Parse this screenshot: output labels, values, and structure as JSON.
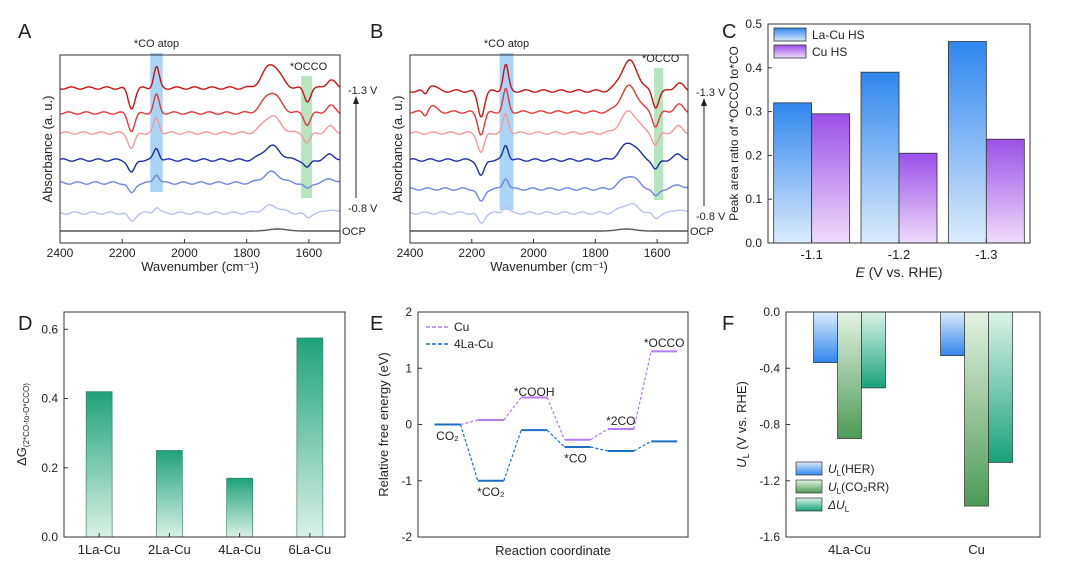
{
  "chart_data": [
    {
      "panel": "A",
      "type": "line",
      "xlabel": "Wavenumber (cm⁻¹)",
      "ylabel": "Absorbance (a. u.)",
      "xlim": [
        2400,
        1500
      ],
      "xticks": [
        2400,
        2200,
        2000,
        1800,
        1600
      ],
      "bands": [
        {
          "label": "*CO atop",
          "x": [
            2110,
            2070
          ],
          "color": "#8ec5f2"
        },
        {
          "label": "*OCCO",
          "x": [
            1625,
            1590
          ],
          "color": "#9edcaa"
        }
      ],
      "series": [
        {
          "name": "OCP",
          "color": "#555555",
          "offset": 0
        },
        {
          "name": "-0.8 V",
          "color": "#b6c2ee",
          "offset": 0.6
        },
        {
          "name": "",
          "color": "#6d86e0",
          "offset": 1.4
        },
        {
          "name": "",
          "color": "#1e2fa0",
          "offset": 2.2
        },
        {
          "name": "",
          "color": "#f39a9a",
          "offset": 3.0
        },
        {
          "name": "",
          "color": "#e03b3b",
          "offset": 3.8
        },
        {
          "name": "-1.3 V",
          "color": "#c81414",
          "offset": 4.6
        }
      ],
      "annotations": {
        "top": "-1.3 V",
        "bottom": "-0.8 V",
        "ocp": "OCP"
      }
    },
    {
      "panel": "B",
      "type": "line",
      "xlabel": "Wavenumber (cm⁻¹)",
      "ylabel": "Absorbance (a. u.)",
      "xlim": [
        2400,
        1500
      ],
      "xticks": [
        2400,
        2200,
        2000,
        1800,
        1600
      ],
      "bands": [
        {
          "label": "*CO atop",
          "x": [
            2110,
            2065
          ],
          "color": "#8ec5f2"
        },
        {
          "label": "*OCCO",
          "x": [
            1610,
            1580
          ],
          "color": "#9edcaa"
        }
      ],
      "series": [
        {
          "name": "OCP",
          "color": "#555555",
          "offset": 0
        },
        {
          "name": "-0.8 V",
          "color": "#b6c2ee",
          "offset": 0.6
        },
        {
          "name": "",
          "color": "#6d86e0",
          "offset": 1.4
        },
        {
          "name": "",
          "color": "#1e2fa0",
          "offset": 2.2
        },
        {
          "name": "",
          "color": "#f39a9a",
          "offset": 3.0
        },
        {
          "name": "",
          "color": "#e03b3b",
          "offset": 3.8
        },
        {
          "name": "-1.3 V",
          "color": "#c81414",
          "offset": 4.6
        }
      ],
      "annotations": {
        "top": "-1.3 V",
        "bottom": "-0.8 V",
        "ocp": "OCP"
      }
    },
    {
      "panel": "C",
      "type": "bar",
      "categories": [
        "-1.1",
        "-1.2",
        "-1.3"
      ],
      "series": [
        {
          "name": "La-Cu HS",
          "values": [
            0.32,
            0.39,
            0.46
          ],
          "color": "#3b8ff0"
        },
        {
          "name": "Cu HS",
          "values": [
            0.295,
            0.205,
            0.237
          ],
          "color": "#9b4ee6"
        }
      ],
      "xlabel": "E (V vs. RHE)",
      "ylabel": "Peak area ratio of *OCCO to*CO",
      "ylim": [
        0,
        0.5
      ],
      "yticks": [
        0.0,
        0.1,
        0.2,
        0.3,
        0.4,
        0.5
      ]
    },
    {
      "panel": "D",
      "type": "bar",
      "categories": [
        "1La-Cu",
        "2La-Cu",
        "4La-Cu",
        "6La-Cu"
      ],
      "values": [
        0.42,
        0.25,
        0.17,
        0.575
      ],
      "color": "#22a77a",
      "ylabel": "ΔG(2*CO-to-O*CCO)",
      "ylim": [
        0,
        0.65
      ],
      "yticks": [
        0.0,
        0.2,
        0.4,
        0.6
      ]
    },
    {
      "panel": "E",
      "type": "line",
      "xlabel": "Reaction coordinate",
      "ylabel": "Relative free energy (eV)",
      "ylim": [
        -2,
        2
      ],
      "yticks": [
        -2,
        -1,
        0,
        1,
        2
      ],
      "series": [
        {
          "name": "Cu",
          "color": "#b77cf0",
          "values": [
            0,
            0.08,
            0.48,
            -0.27,
            -0.08,
            1.3
          ]
        },
        {
          "name": "4La-Cu",
          "color": "#1d6fc4",
          "values": [
            0,
            -1.0,
            -0.1,
            -0.4,
            -0.47,
            -0.3
          ]
        }
      ],
      "labels": [
        "CO₂",
        "*CO₂",
        "*COOH",
        "*CO",
        "*2CO",
        "*OCCO"
      ]
    },
    {
      "panel": "F",
      "type": "bar",
      "categories": [
        "4La-Cu",
        "Cu"
      ],
      "series": [
        {
          "name": "UL(HER)",
          "values": [
            -0.36,
            -0.31
          ],
          "color": "#3b8ff0"
        },
        {
          "name": "UL(CO2RR)",
          "values": [
            -0.9,
            -1.38
          ],
          "color": "#4f9e57"
        },
        {
          "name": "ΔUL",
          "values": [
            -0.54,
            -1.07
          ],
          "color": "#1fa87b"
        }
      ],
      "ylabel": "UL (V vs. RHE)",
      "ylim": [
        -1.6,
        0
      ],
      "yticks": [
        0.0,
        -0.4,
        -0.8,
        -1.2,
        -1.6
      ]
    }
  ],
  "panel_letters": [
    "A",
    "B",
    "C",
    "D",
    "E",
    "F"
  ],
  "texts": {
    "ocp": "OCP",
    "c_xlabel_rest": " (V vs. RHE)",
    "c_xlabel_E": "E",
    "e_legend_cu": "Cu",
    "e_legend_la": "4La-Cu",
    "f_leg_her": "(HER)",
    "f_leg_co2rr": "(CO₂RR)",
    "f_leg_dul": ""
  }
}
